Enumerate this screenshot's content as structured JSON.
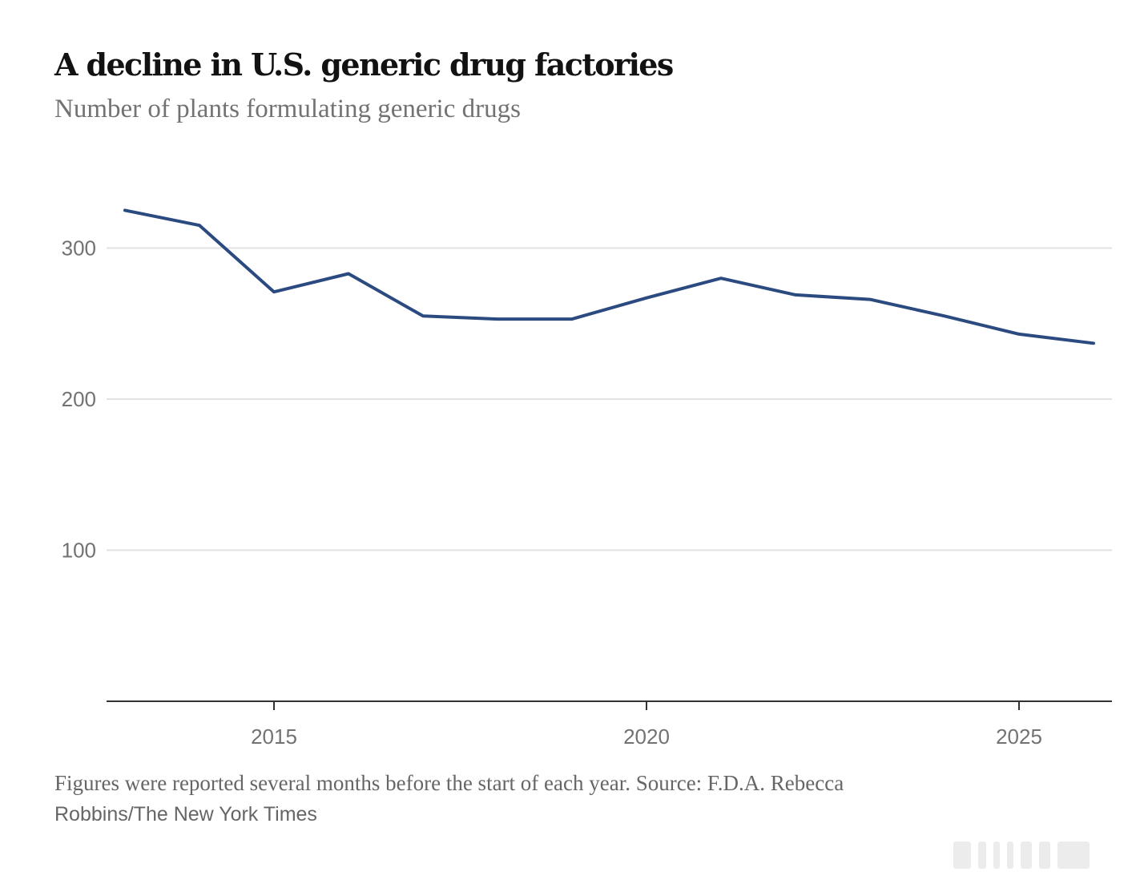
{
  "header": {
    "title": "A decline in U.S. generic drug factories",
    "subtitle": "Number of plants formulating generic drugs"
  },
  "footer": {
    "note": "Figures were reported several months before the start of each year.  Source: F.D.A.  Rebecca",
    "credit": "Robbins/The New York Times"
  },
  "colors": {
    "line": "#2b4a80",
    "grid": "#e2e2e2",
    "axis": "#333333",
    "tick_label": "#727272"
  },
  "chart_data": {
    "type": "line",
    "title": "A decline in U.S. generic drug factories",
    "subtitle": "Number of plants formulating generic drugs",
    "xlabel": "",
    "ylabel": "",
    "x": [
      2013,
      2014,
      2015,
      2016,
      2017,
      2018,
      2019,
      2020,
      2021,
      2022,
      2023,
      2024,
      2025,
      2026
    ],
    "series": [
      {
        "name": "Plants formulating generic drugs",
        "values": [
          325,
          315,
          271,
          283,
          255,
          253,
          253,
          267,
          280,
          269,
          266,
          255,
          243,
          237
        ]
      }
    ],
    "xlim": [
      2011.2,
      2026.5
    ],
    "ylim": [
      0,
      345
    ],
    "yticks": [
      100,
      200,
      300
    ],
    "ytick_labels": [
      "100",
      "200",
      "300"
    ],
    "xticks": [
      2015,
      2020,
      2025
    ],
    "xtick_labels": [
      "2015",
      "2020",
      "2025"
    ],
    "grid": "horizontal",
    "legend": "none"
  }
}
